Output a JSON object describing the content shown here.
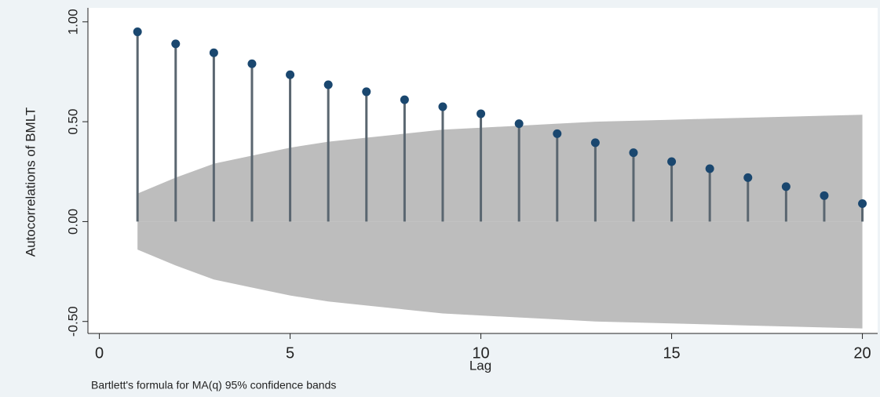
{
  "chart_data": {
    "type": "stem",
    "y_label": "Autocorrelations of BMLT",
    "x_label": "Lag",
    "note": "Bartlett's formula for MA(q) 95% confidence bands",
    "x": [
      1,
      2,
      3,
      4,
      5,
      6,
      7,
      8,
      9,
      10,
      11,
      12,
      13,
      14,
      15,
      16,
      17,
      18,
      19,
      20
    ],
    "values": [
      0.95,
      0.89,
      0.845,
      0.79,
      0.735,
      0.685,
      0.65,
      0.61,
      0.575,
      0.54,
      0.49,
      0.44,
      0.395,
      0.345,
      0.3,
      0.265,
      0.22,
      0.175,
      0.13,
      0.09
    ],
    "color": "#1a476f",
    "band_upper": [
      0.14,
      0.22,
      0.29,
      0.33,
      0.37,
      0.4,
      0.42,
      0.44,
      0.46,
      0.47,
      0.48,
      0.49,
      0.5,
      0.505,
      0.51,
      0.515,
      0.52,
      0.525,
      0.53,
      0.535
    ],
    "band_lower": [
      -0.14,
      -0.22,
      -0.29,
      -0.33,
      -0.37,
      -0.4,
      -0.42,
      -0.44,
      -0.46,
      -0.47,
      -0.48,
      -0.49,
      -0.5,
      -0.505,
      -0.51,
      -0.515,
      -0.52,
      -0.525,
      -0.53,
      -0.535
    ],
    "band_color": "#bdbdbd",
    "xlim": [
      -0.3,
      20.4
    ],
    "ylim": [
      -0.56,
      1.07
    ],
    "xticks": [
      0,
      5,
      10,
      15,
      20
    ],
    "yticks": [
      {
        "value": -0.5,
        "label": "-0.50"
      },
      {
        "value": 0,
        "label": "0.00"
      },
      {
        "value": 0.5,
        "label": "0.50"
      },
      {
        "value": 1,
        "label": "1.00"
      }
    ],
    "grid": false
  }
}
